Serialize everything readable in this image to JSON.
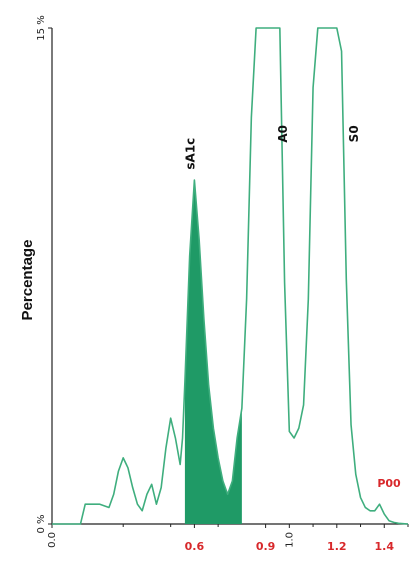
{
  "chart_data": {
    "type": "area",
    "ylabel": "Percentage",
    "ylim": [
      0,
      15
    ],
    "xlim": [
      0,
      1.5
    ],
    "y_ticks": [
      {
        "value": 0,
        "label": "0 %"
      },
      {
        "value": 15,
        "label": "15 %"
      }
    ],
    "x_ticks_black": [
      {
        "value": 0.0,
        "label": "0.0"
      },
      {
        "value": 1.0,
        "label": "1.0"
      }
    ],
    "x_ticks_red": [
      {
        "value": 0.6,
        "label": "0.6"
      },
      {
        "value": 0.9,
        "label": "0.9"
      },
      {
        "value": 1.2,
        "label": "1.2"
      },
      {
        "value": 1.4,
        "label": "1.4"
      }
    ],
    "series": [
      {
        "x": [
          0.0,
          0.12,
          0.14,
          0.17,
          0.2,
          0.24,
          0.26,
          0.28,
          0.3,
          0.32,
          0.34,
          0.36,
          0.38,
          0.4,
          0.42,
          0.44,
          0.46,
          0.48,
          0.5,
          0.52,
          0.54,
          0.55,
          0.56,
          0.58,
          0.6,
          0.62,
          0.64,
          0.66,
          0.68,
          0.7,
          0.72,
          0.74,
          0.76,
          0.78,
          0.8,
          0.82,
          0.84,
          0.86,
          0.88,
          0.9,
          0.92,
          0.94,
          0.96,
          0.98,
          1.0,
          1.02,
          1.04,
          1.06,
          1.08,
          1.1,
          1.12,
          1.14,
          1.16,
          1.18,
          1.2,
          1.22,
          1.24,
          1.26,
          1.28,
          1.3,
          1.32,
          1.34,
          1.36,
          1.38,
          1.4,
          1.42,
          1.44,
          1.46,
          1.5
        ],
        "y": [
          0.0,
          0.0,
          0.6,
          0.6,
          0.6,
          0.5,
          0.9,
          1.6,
          2.0,
          1.7,
          1.1,
          0.6,
          0.4,
          0.9,
          1.2,
          0.6,
          1.1,
          2.3,
          3.2,
          2.6,
          1.8,
          2.6,
          4.3,
          8.1,
          10.4,
          8.6,
          6.2,
          4.2,
          2.9,
          2.0,
          1.3,
          0.9,
          1.3,
          2.6,
          3.5,
          6.8,
          12.3,
          15.0,
          15.0,
          15.0,
          15.0,
          15.0,
          15.0,
          7.3,
          2.8,
          2.6,
          2.9,
          3.6,
          6.8,
          13.2,
          15.0,
          15.0,
          15.0,
          15.0,
          15.0,
          14.3,
          7.4,
          3.0,
          1.5,
          0.8,
          0.5,
          0.4,
          0.4,
          0.6,
          0.3,
          0.1,
          0.05,
          0.02,
          0.0
        ]
      }
    ],
    "shaded_region": {
      "x_from": 0.56,
      "x_to": 0.8
    },
    "peak_labels": [
      {
        "text": "sA1c",
        "x": 0.6,
        "y": 11.2
      },
      {
        "text": "A0",
        "x": 0.99,
        "y": 11.8
      },
      {
        "text": "S0",
        "x": 1.29,
        "y": 11.8
      },
      {
        "text": "P00",
        "x": 1.42,
        "y": 1.0
      }
    ],
    "colors": {
      "line": "#3fae7e",
      "fill": "#1f9a66",
      "zone_labels": "#d8282b",
      "axis": "#222222"
    }
  }
}
